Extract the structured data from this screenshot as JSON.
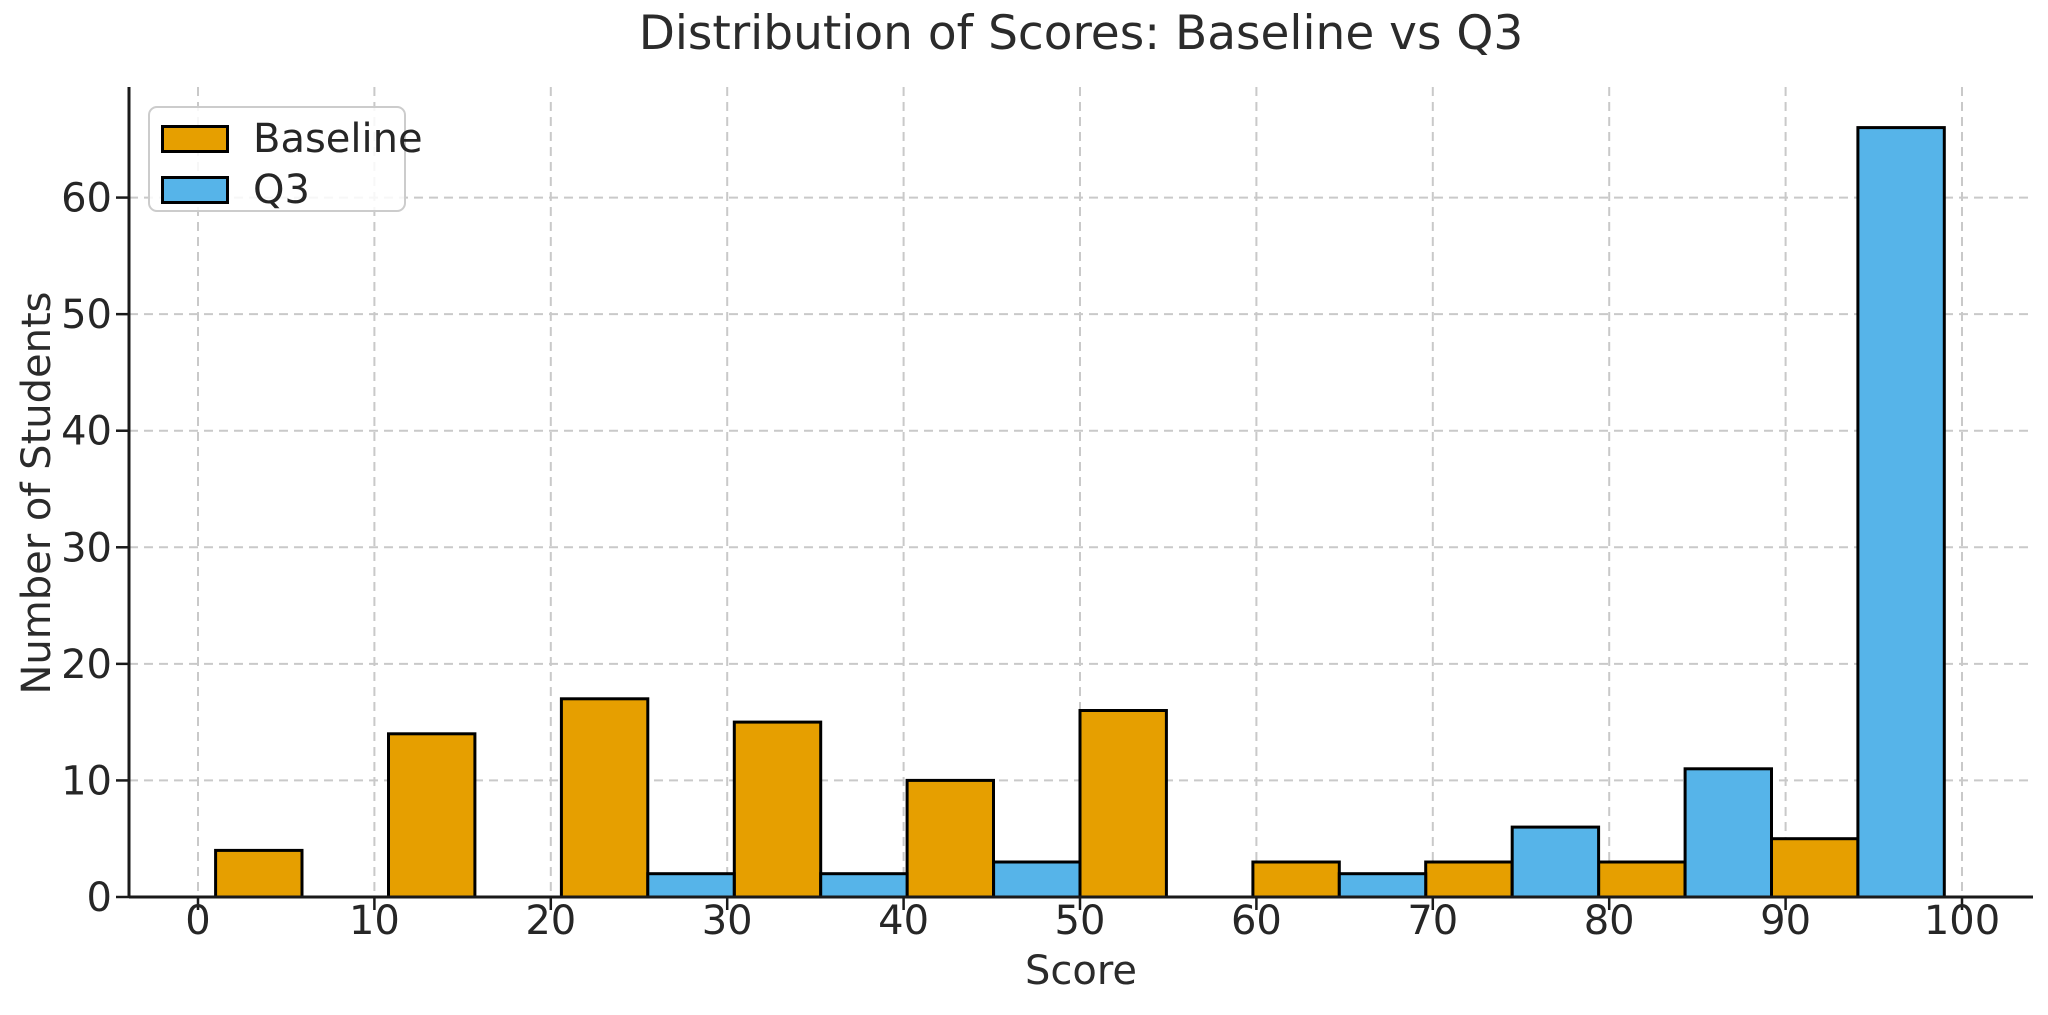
{
  "chart_data": {
    "type": "bar",
    "subtype": "grouped_histogram",
    "title": "Distribution of Scores: Baseline vs Q3",
    "xlabel": "Score",
    "ylabel": "Number of Students",
    "bin_edges": [
      1,
      10.8,
      20.6,
      30.4,
      40.2,
      50,
      59.8,
      69.6,
      79.4,
      89.2,
      99
    ],
    "series": [
      {
        "name": "Baseline",
        "color": "#E69F00",
        "values": [
          4,
          14,
          17,
          15,
          10,
          16,
          3,
          3,
          3,
          5
        ]
      },
      {
        "name": "Q3",
        "color": "#56B4E9",
        "values": [
          0,
          0,
          2,
          2,
          3,
          0,
          2,
          6,
          11,
          66
        ]
      }
    ],
    "xticks": [
      0,
      10,
      20,
      30,
      40,
      50,
      60,
      70,
      80,
      90,
      100
    ],
    "yticks": [
      0,
      10,
      20,
      30,
      40,
      50,
      60
    ],
    "xlim": [
      -3.9,
      103.9
    ],
    "ylim": [
      0,
      69.5
    ],
    "grid": true,
    "grid_style": "dashed",
    "grid_color": "#c9c9c9",
    "bar_edge_color": "#000000",
    "axis_color": "#1a1a1a",
    "text_color": "#262626",
    "legend_position": "upper left"
  }
}
